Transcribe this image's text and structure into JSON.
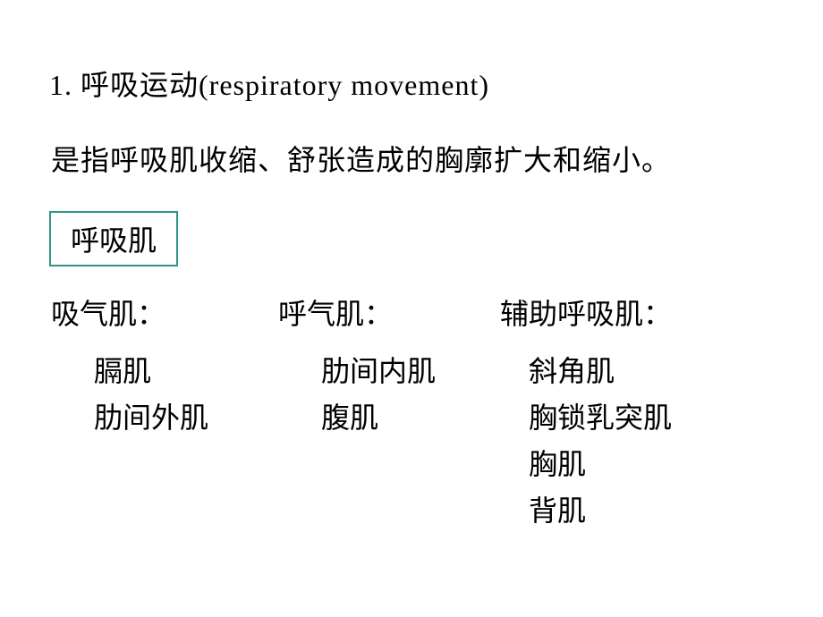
{
  "slide": {
    "heading": "1. 呼吸运动(respiratory movement)",
    "definition": "是指呼吸肌收缩、舒张造成的胸廓扩大和缩小。",
    "box_title": "呼吸肌",
    "columns": {
      "col1": {
        "heading": "吸气肌：",
        "items": [
          "膈肌",
          "肋间外肌"
        ]
      },
      "col2": {
        "heading": "呼气肌：",
        "items": [
          "肋间内肌",
          "腹肌"
        ]
      },
      "col3": {
        "heading": "辅助呼吸肌：",
        "items": [
          "斜角肌",
          "胸锁乳突肌",
          "胸肌",
          "背肌"
        ]
      }
    },
    "colors": {
      "box_border": "#2e9688",
      "background": "#ffffff",
      "text": "#000000"
    },
    "typography": {
      "body_fontsize": 32,
      "font_family": "SimSun"
    }
  }
}
